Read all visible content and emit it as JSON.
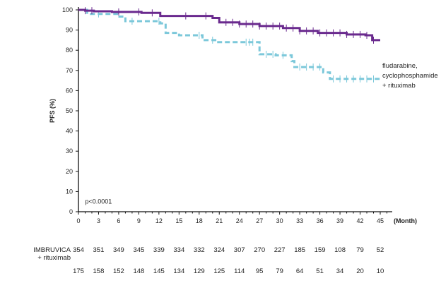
{
  "chart_data": {
    "type": "line",
    "subtype": "kaplan-meier step",
    "ylabel": "PFS (%)",
    "xlabel": "(Month)",
    "xlim": [
      0,
      45
    ],
    "ylim": [
      0,
      100
    ],
    "xticks": [
      0,
      3,
      6,
      9,
      12,
      15,
      18,
      21,
      24,
      27,
      30,
      33,
      36,
      39,
      42,
      45
    ],
    "yticks": [
      0,
      10,
      20,
      30,
      40,
      50,
      60,
      70,
      80,
      90,
      100
    ],
    "grid": false,
    "annotation": "p<0.0001",
    "series": [
      {
        "name": "IMBRUVICA + rituximab",
        "color": "#6a2a8e",
        "style": "solid",
        "x": [
          0,
          1,
          2.3,
          5,
          9.4,
          12.2,
          20,
          21,
          24,
          27,
          30.5,
          33,
          35.7,
          40,
          42.8,
          43.8,
          45
        ],
        "y": [
          100,
          99.6,
          99.3,
          99,
          98.5,
          97,
          96,
          93.8,
          93,
          92,
          91,
          89.6,
          88.6,
          87.8,
          87.4,
          85,
          85
        ],
        "censored": [
          1,
          2,
          6,
          9,
          11,
          16,
          19,
          22,
          23,
          24,
          25,
          26,
          27,
          28,
          29,
          30,
          31,
          32,
          33,
          34,
          35,
          36,
          37,
          38,
          39,
          40,
          41,
          42,
          43,
          44
        ]
      },
      {
        "name": "fludarabine, cyclophosphamide + rituximab",
        "color": "#7cc8da",
        "style": "dashed",
        "x": [
          0,
          1.3,
          5.9,
          7,
          12.2,
          13,
          15,
          18.5,
          20.6,
          26,
          27,
          29.4,
          31.8,
          32.2,
          35.7,
          36.5,
          37.5,
          45
        ],
        "y": [
          100,
          98,
          96.7,
          94.4,
          93.3,
          88.6,
          87.4,
          85,
          84,
          84,
          78,
          77.5,
          74.6,
          71.7,
          71.7,
          69,
          65.8,
          65.8
        ],
        "censored": [
          3,
          8,
          12,
          18,
          20,
          25,
          25.5,
          26,
          28,
          29,
          30.5,
          33,
          34,
          35,
          36,
          38,
          39,
          40,
          41,
          42,
          43,
          44
        ]
      }
    ],
    "risk_table": {
      "rows": [
        {
          "label_line1": "IMBRUVICA",
          "label_line2": "+ rituximab",
          "values": [
            354,
            351,
            349,
            345,
            339,
            334,
            332,
            324,
            307,
            270,
            227,
            185,
            159,
            108,
            79,
            52
          ]
        },
        {
          "label_line1": "",
          "label_line2": "",
          "values": [
            175,
            158,
            152,
            148,
            145,
            134,
            129,
            125,
            114,
            95,
            79,
            64,
            51,
            34,
            20,
            10
          ]
        }
      ]
    }
  },
  "legend": {
    "line1": "fludarabine,",
    "line2": "cyclophosphamide",
    "line3": "+ rituximab"
  }
}
